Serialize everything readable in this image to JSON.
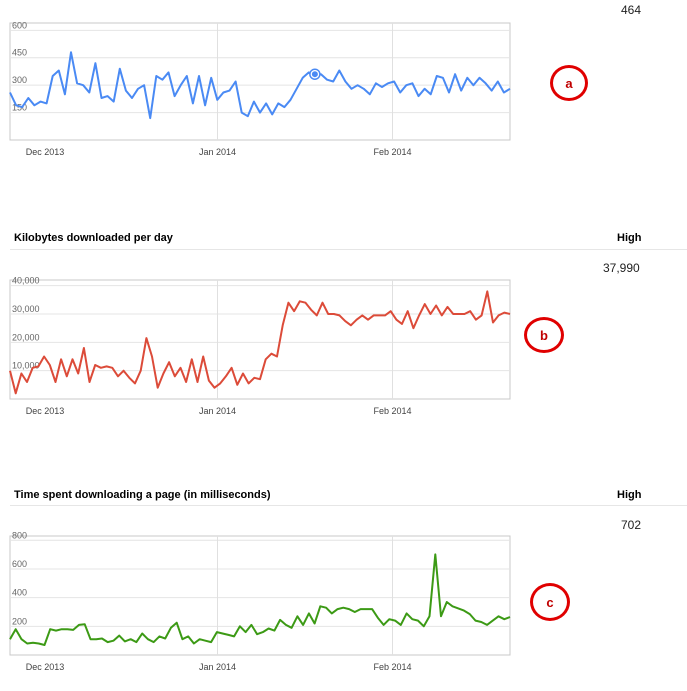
{
  "sections": [
    {
      "title": "",
      "high_label": "",
      "high_value": "464",
      "marker": "a"
    },
    {
      "title": "Kilobytes downloaded per day",
      "high_label": "High",
      "high_value": "37,990",
      "marker": "b"
    },
    {
      "title": "Time spent downloading a page (in milliseconds)",
      "high_label": "High",
      "high_value": "702",
      "marker": "c"
    }
  ],
  "colors": {
    "a": "#4a8af4",
    "b": "#dc4b39",
    "c": "#3c9a15",
    "marker": "#e00000"
  },
  "chart_data": [
    {
      "type": "line",
      "x_ticks": [
        "Dec 2013",
        "Jan 2014",
        "Feb 2014"
      ],
      "y_ticks": [
        "600",
        "450",
        "300",
        "150"
      ],
      "ylim": [
        0,
        640
      ],
      "grid": true,
      "highlight_index": 50,
      "series": [
        {
          "values": [
            260,
            190,
            180,
            230,
            190,
            210,
            200,
            350,
            380,
            250,
            480,
            310,
            300,
            260,
            420,
            230,
            240,
            210,
            390,
            270,
            230,
            280,
            300,
            120,
            350,
            330,
            370,
            240,
            300,
            350,
            200,
            350,
            190,
            340,
            220,
            260,
            270,
            320,
            150,
            130,
            210,
            150,
            200,
            140,
            200,
            180,
            220,
            280,
            340,
            370,
            360,
            360,
            330,
            320,
            380,
            320,
            280,
            300,
            280,
            250,
            310,
            290,
            310,
            320,
            260,
            300,
            310,
            240,
            280,
            250,
            350,
            340,
            260,
            360,
            270,
            340,
            300,
            340,
            310,
            270,
            320,
            260,
            280
          ]
        }
      ]
    },
    {
      "type": "line",
      "x_ticks": [
        "Dec 2013",
        "Jan 2014",
        "Feb 2014"
      ],
      "y_ticks": [
        "40,000",
        "30,000",
        "20,000",
        "10,000"
      ],
      "ylim": [
        0,
        42000
      ],
      "grid": true,
      "series": [
        {
          "values": [
            10000,
            2000,
            9000,
            6000,
            11000,
            11500,
            15000,
            12000,
            6000,
            14000,
            8000,
            14000,
            9000,
            18000,
            6000,
            12000,
            11000,
            11500,
            11000,
            8000,
            10000,
            7500,
            5500,
            10000,
            21500,
            15000,
            4000,
            9000,
            13000,
            8000,
            11000,
            6000,
            14000,
            6000,
            15000,
            6500,
            4000,
            5500,
            8000,
            11000,
            5000,
            9000,
            5500,
            7500,
            7000,
            14000,
            16000,
            15000,
            26000,
            34000,
            31000,
            34500,
            34000,
            31500,
            29500,
            34000,
            30000,
            30000,
            29500,
            27500,
            26000,
            28000,
            29500,
            28000,
            29500,
            29500,
            29500,
            31000,
            28000,
            26500,
            31000,
            25000,
            29500,
            33500,
            30000,
            33000,
            29500,
            32500,
            30000,
            30000,
            30000,
            31000,
            28000,
            29500,
            37990,
            27000,
            29500,
            30500,
            30000
          ]
        }
      ]
    },
    {
      "type": "line",
      "x_ticks": [
        "Dec 2013",
        "Jan 2014",
        "Feb 2014"
      ],
      "y_ticks": [
        "800",
        "600",
        "400",
        "200"
      ],
      "ylim": [
        0,
        830
      ],
      "grid": true,
      "series": [
        {
          "values": [
            110,
            180,
            110,
            80,
            85,
            80,
            70,
            180,
            170,
            180,
            180,
            175,
            210,
            215,
            110,
            110,
            115,
            90,
            100,
            135,
            95,
            110,
            90,
            150,
            110,
            90,
            130,
            115,
            190,
            225,
            110,
            130,
            80,
            110,
            100,
            90,
            160,
            150,
            140,
            130,
            200,
            160,
            210,
            145,
            160,
            185,
            170,
            245,
            210,
            190,
            270,
            210,
            290,
            220,
            340,
            330,
            290,
            320,
            330,
            320,
            300,
            320,
            320,
            320,
            260,
            210,
            250,
            240,
            210,
            290,
            250,
            240,
            200,
            270,
            702,
            270,
            370,
            340,
            325,
            310,
            285,
            240,
            230,
            210,
            240,
            270,
            250,
            265
          ]
        }
      ]
    }
  ]
}
